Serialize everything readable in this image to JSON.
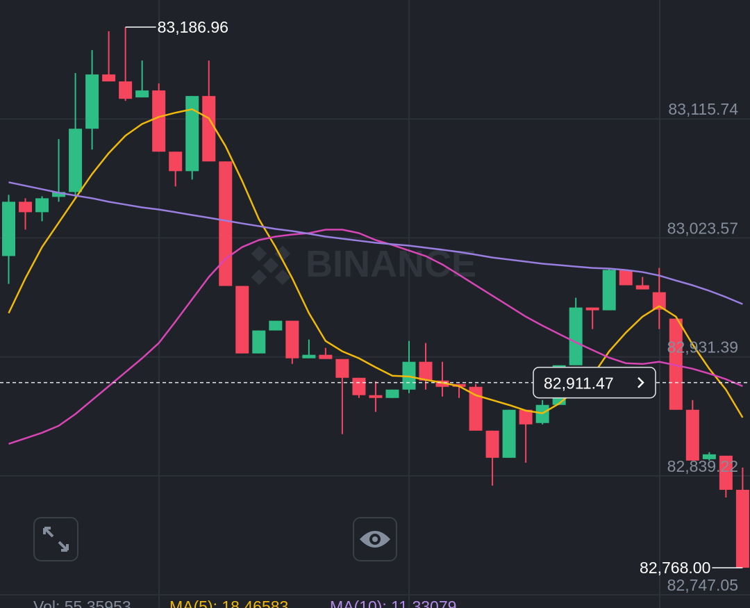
{
  "chart_data": {
    "type": "candlestick",
    "watermark": "BINANCE",
    "up_color": "#2ebd85",
    "down_color": "#f6465d",
    "grid": true,
    "ylim": [
      82736.81,
      83207.93
    ],
    "yticks": [
      {
        "value": 83115.74,
        "label": "83,115.74"
      },
      {
        "value": 83023.57,
        "label": "83,023.57"
      },
      {
        "value": 82931.39,
        "label": "82,931.39"
      },
      {
        "value": 82839.22,
        "label": "82,839.22"
      },
      {
        "value": 82747.05,
        "label": "82,747.05"
      }
    ],
    "open": [
      83009.54,
      83051.59,
      83043.5,
      83055.36,
      83059.13,
      83108.19,
      83150.24,
      83144.85,
      83132.45,
      83137.84,
      83090.4,
      83075.31,
      83133.53,
      83082.85,
      82986.36,
      82934.06,
      82951.85,
      82959.4,
      82930.29,
      82932.99,
      82929.75,
      82915.19,
      82901.72,
      82899.56,
      82906.03,
      82927.59,
      82913.04,
      82910.34,
      82908.19,
      82874.22,
      82853.2,
      82890.4,
      82880.15,
      82894.17,
      82924.9,
      82969.64,
      82967.49,
      82998.76,
      82986.9,
      82981.5,
      82961.02,
      82890.4,
      82852.12,
      82854.82,
      82828.4
    ],
    "high": [
      83056.98,
      83054.28,
      83055.9,
      83100.11,
      83151.32,
      83169.11,
      83183.67,
      83186.96,
      83161.02,
      83143.23,
      83090.4,
      83133.53,
      83161.02,
      83082.85,
      82986.36,
      82951.85,
      82959.4,
      82959.4,
      82944.85,
      82938.38,
      82929.75,
      82915.19,
      82912.5,
      82906.03,
      82943.77,
      82942.15,
      82927.59,
      82910.34,
      82910.34,
      82874.22,
      82890.4,
      82890.4,
      82897.94,
      82924.9,
      82977.19,
      82969.64,
      82999.83,
      82998.76,
      82993.36,
      83000.37,
      82961.02,
      82897.94,
      82857.51,
      82854.82,
      82845.65
    ],
    "low": [
      82987.97,
      83030.02,
      83036.49,
      83051.59,
      83054.28,
      83092.02,
      83144.85,
      83129.76,
      83132.45,
      83090.4,
      83063.45,
      83068.84,
      83082.85,
      82986.36,
      82934.06,
      82934.06,
      82951.85,
      82925.98,
      82930.29,
      82929.75,
      82871.53,
      82899.56,
      82888.78,
      82899.56,
      82903.33,
      82906.03,
      82900.64,
      82899.56,
      82874.22,
      82831.63,
      82853.2,
      82849.42,
      82879.08,
      82894.17,
      82924.9,
      82952.93,
      82967.49,
      82986.9,
      82983.66,
      82952.93,
      82890.4,
      82851.04,
      82851.04,
      82822.47,
      82768.0
    ],
    "close": [
      83051.59,
      83043.5,
      83054.28,
      83059.13,
      83108.19,
      83150.24,
      83144.85,
      83131.37,
      83137.84,
      83090.4,
      83075.31,
      83133.53,
      83082.85,
      82986.36,
      82934.06,
      82951.85,
      82959.4,
      82930.29,
      82932.99,
      82929.75,
      82915.19,
      82901.72,
      82899.56,
      82906.03,
      82927.59,
      82913.04,
      82908.19,
      82908.19,
      82874.22,
      82853.2,
      82890.4,
      82879.08,
      82894.17,
      82924.9,
      82969.64,
      82967.49,
      82998.76,
      82986.9,
      82983.66,
      82968.03,
      82890.4,
      82851.04,
      82855.89,
      82828.4,
      82768.0
    ],
    "lines": [
      {
        "color": "#f0b90b",
        "values": [
          82965.3,
          82992.3,
          83016.5,
          83035.4,
          83054.3,
          83073.1,
          83089.3,
          83102.8,
          83111.9,
          83117.3,
          83120.6,
          83123.3,
          83116.3,
          83094.7,
          83067.7,
          83038.1,
          83016.5,
          82992.3,
          82965.3,
          82943.7,
          82935.7,
          82930.3,
          82923.3,
          82916.8,
          82916.2,
          82913.6,
          82911.4,
          82908.7,
          82901.7,
          82897.9,
          82894.1,
          82889.8,
          82887.7,
          82895.2,
          82906.0,
          82916.8,
          82935.7,
          82950.2,
          82962.6,
          82970.7,
          82962.6,
          82941.0,
          82922.2,
          82906.0,
          82884.4
        ]
      },
      {
        "color": "#d846b6",
        "values": [
          82864.0,
          82868.3,
          82872.6,
          82878.0,
          82887.1,
          82897.9,
          82908.7,
          82919.5,
          82930.3,
          82942.1,
          82958.8,
          82976.1,
          82993.3,
          83007.4,
          83016.5,
          83021.9,
          83024.6,
          83026.2,
          83027.3,
          83030.0,
          83030.0,
          83027.3,
          83021.9,
          83018.1,
          83013.8,
          83009.5,
          83003.0,
          82995.0,
          82986.9,
          82978.8,
          82970.7,
          82962.6,
          82955.6,
          82949.1,
          82942.7,
          82936.7,
          82930.8,
          82926.5,
          82925.9,
          82927.6,
          82924.9,
          82922.2,
          82918.4,
          82914.1,
          82908.7
        ]
      },
      {
        "color": "#9a7fe0",
        "values": [
          83066.7,
          83064.0,
          83061.3,
          83058.6,
          83056.4,
          83054.3,
          83051.6,
          83049.4,
          83047.2,
          83045.6,
          83043.5,
          83041.3,
          83039.2,
          83037.0,
          83034.8,
          83032.7,
          83030.5,
          83028.9,
          83026.8,
          83024.6,
          83023.0,
          83021.4,
          83019.8,
          83018.7,
          83017.6,
          83016.0,
          83014.4,
          83012.7,
          83010.6,
          83008.4,
          83006.8,
          83005.2,
          83003.6,
          83002.5,
          83001.4,
          83000.3,
          82999.8,
          82998.7,
          82997.1,
          82994.4,
          82990.6,
          82986.9,
          82982.6,
          82977.7,
          82972.3
        ]
      }
    ],
    "max_label": {
      "value": 83186.96,
      "label": "83,186.96"
    },
    "min_label": {
      "value": 82768.0,
      "label": "82,768.00"
    },
    "current_price": {
      "value": 82911.47,
      "label": "82,911.47"
    },
    "indicators": [
      {
        "text": "Vol: 55.35953",
        "color": "#848e9c"
      },
      {
        "text": "MA(5): 18.46583",
        "color": "#f0b90b"
      },
      {
        "text": "MA(10): 11.33079",
        "color": "#b48be8"
      }
    ]
  }
}
